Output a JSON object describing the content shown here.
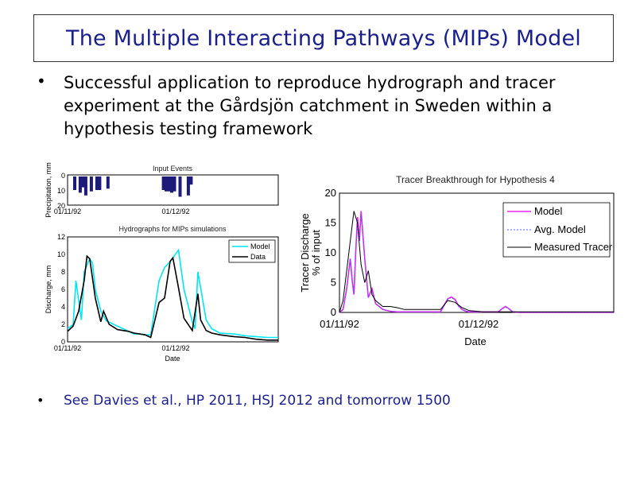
{
  "title": "The Multiple Interacting Pathways (MIPs) Model",
  "bullets": [
    "Successful application to reproduce hydrograph and tracer experiment at the Gårdsjön catchment in Sweden within a hypothesis testing framework",
    "See Davies et al., HP 2011, HSJ 2012 and tomorrow 1500"
  ],
  "bullet_glyph": "•",
  "colors": {
    "title": "#1b1f8c",
    "bar": "#1c1a7a",
    "model": "#00e5ee",
    "data": "#000000",
    "magenta": "#ee22ee",
    "avg": "#5a5aff"
  },
  "chart_data": [
    {
      "type": "bar",
      "title": "Input Events",
      "ylabel": "Precipitation, mm",
      "yticks": [
        "0",
        "10",
        "20"
      ],
      "ylim": [
        0,
        20
      ],
      "xticks": [
        "01/11/92",
        "01/12/92"
      ],
      "x": [
        2,
        4,
        5,
        6,
        8,
        10,
        11,
        14,
        34,
        35,
        36,
        37,
        38,
        40,
        43,
        44
      ],
      "values": [
        10,
        12,
        8,
        14,
        11,
        10,
        10,
        9,
        10,
        11,
        11,
        12,
        11,
        15,
        14,
        6
      ]
    },
    {
      "type": "line",
      "title": "Hydrographs for MIPs simulations",
      "ylabel": "Discharge, mm",
      "xlabel": "Date",
      "yticks": [
        "0",
        "2",
        "4",
        "6",
        "8",
        "10",
        "12"
      ],
      "ylim": [
        0,
        12
      ],
      "xticks": [
        "01/11/92",
        "01/12/92"
      ],
      "series": [
        {
          "name": "Model",
          "x": [
            0,
            2,
            3,
            5,
            6,
            8,
            9,
            10,
            12,
            14,
            18,
            22,
            24,
            26,
            28,
            30,
            33,
            35,
            37,
            40,
            42,
            45,
            46,
            47,
            50,
            52,
            55,
            60,
            64,
            68,
            72,
            76
          ],
          "values": [
            1.5,
            2,
            7,
            2.5,
            8,
            9.5,
            9,
            6,
            3.5,
            2.4,
            1.8,
            1.2,
            0.9,
            0.9,
            0.8,
            0.8,
            7,
            8.5,
            9.2,
            10.5,
            6,
            2.3,
            1.5,
            8,
            2.5,
            1.5,
            1,
            0.9,
            0.7,
            0.6,
            0.5,
            0.5
          ]
        },
        {
          "name": "Data",
          "x": [
            0,
            2,
            4,
            6,
            7,
            8,
            10,
            12,
            13,
            15,
            18,
            22,
            24,
            26,
            28,
            30,
            33,
            35,
            37,
            38,
            40,
            42,
            45,
            47,
            48,
            50,
            52,
            55,
            60,
            64,
            68,
            72,
            76
          ],
          "values": [
            1.2,
            1.8,
            3.5,
            7,
            9.8,
            9.5,
            5,
            2.3,
            3.5,
            2,
            1.4,
            1.2,
            1,
            0.9,
            0.8,
            0.5,
            4.5,
            5,
            9.2,
            9.6,
            6.2,
            2.7,
            1.3,
            5.5,
            2.5,
            1.3,
            1,
            0.8,
            0.6,
            0.5,
            0.3,
            0.2,
            0.2
          ]
        }
      ],
      "legend": "top-right"
    },
    {
      "type": "line",
      "title": "Tracer Breakthrough for Hypothesis 4",
      "ylabel_lines": [
        "Tracer Discharge",
        "% of input"
      ],
      "xlabel": "Date",
      "yticks": [
        "0",
        "5",
        "10",
        "15",
        "20"
      ],
      "ylim": [
        0,
        20
      ],
      "xticks": [
        "01/11/92",
        "01/12/92"
      ],
      "series": [
        {
          "name": "Model",
          "x": [
            0,
            1,
            2,
            3,
            3.5,
            4,
            4.5,
            5,
            5.5,
            6,
            7,
            8,
            9,
            10,
            12,
            14,
            16,
            18,
            20,
            22,
            24,
            26,
            28,
            29,
            30,
            31,
            32,
            33,
            34,
            35,
            36,
            38,
            40,
            42,
            44,
            45,
            46,
            47,
            48,
            50,
            54,
            58,
            62,
            66,
            70,
            76
          ],
          "values": [
            0,
            0.5,
            4,
            9,
            5.5,
            3,
            10,
            16,
            12,
            17,
            9,
            2.5,
            4,
            1.5,
            0.5,
            0.2,
            0.1,
            0.1,
            0.1,
            0.1,
            0.1,
            0.1,
            0.1,
            1.2,
            2.3,
            2.6,
            2.2,
            1.1,
            0.5,
            0.2,
            0.1,
            0.1,
            0.1,
            0.1,
            0.1,
            0.6,
            1,
            0.6,
            0.1,
            0,
            0,
            0,
            0,
            0,
            0,
            0
          ]
        },
        {
          "name": "Avg. Model",
          "x": [
            0,
            1,
            2,
            3,
            3.5,
            4,
            4.5,
            5,
            5.5,
            6,
            7,
            8,
            9,
            10,
            12,
            14,
            16,
            18,
            20,
            22,
            24,
            26,
            28,
            29,
            30,
            31,
            32,
            33,
            34,
            35,
            36,
            38,
            40,
            42,
            44,
            45,
            46,
            47,
            48,
            50,
            54,
            58,
            62,
            66,
            70,
            76
          ],
          "values": [
            0,
            0.5,
            4,
            9,
            5.5,
            3,
            10,
            15.5,
            12,
            16.5,
            9,
            2.5,
            4,
            1.5,
            0.5,
            0.2,
            0.1,
            0.1,
            0.1,
            0.1,
            0.1,
            0.1,
            0.1,
            1.1,
            2.2,
            2.5,
            2.1,
            1.1,
            0.5,
            0.2,
            0.1,
            0.1,
            0.1,
            0.1,
            0.1,
            0.6,
            0.9,
            0.6,
            0.1,
            0,
            0,
            0,
            0,
            0,
            0,
            0
          ]
        },
        {
          "name": "Measured Tracer",
          "x": [
            0,
            1,
            2,
            3,
            4,
            5,
            6,
            7,
            8,
            9,
            10,
            11,
            12,
            14,
            16,
            18,
            20,
            22,
            24,
            26,
            28,
            30,
            32,
            34,
            36,
            38,
            40,
            44,
            48,
            52,
            60,
            68,
            76
          ],
          "values": [
            0,
            2,
            7,
            12,
            17,
            15,
            8,
            5,
            7,
            3,
            2,
            1.5,
            1,
            1,
            0.8,
            0.5,
            0.5,
            0.5,
            0.5,
            0.5,
            0.5,
            2,
            1.7,
            0.8,
            0.3,
            0.2,
            0.1,
            0.1,
            0.1,
            0.1,
            0.1,
            0.1,
            0.1
          ]
        }
      ],
      "legend": "top-right"
    }
  ]
}
